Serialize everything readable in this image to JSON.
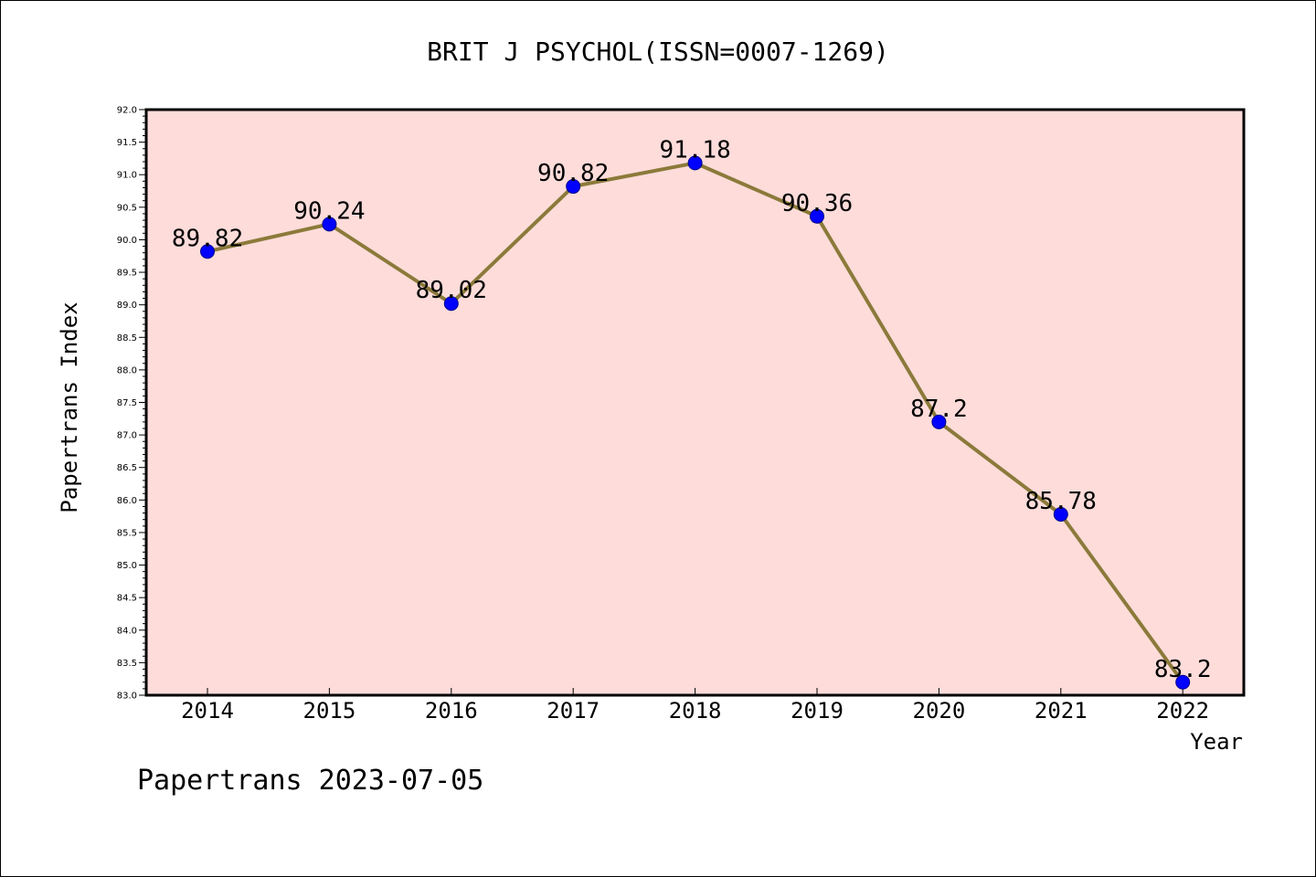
{
  "chart_data": {
    "type": "line",
    "title": "BRIT J PSYCHOL(ISSN=0007-1269)",
    "xlabel": "Year",
    "ylabel": "Papertrans Index",
    "categories": [
      "2014",
      "2015",
      "2016",
      "2017",
      "2018",
      "2019",
      "2020",
      "2021",
      "2022"
    ],
    "series": [
      {
        "values": [
          89.82,
          90.24,
          89.02,
          90.82,
          91.18,
          90.36,
          87.2,
          85.78,
          83.2
        ],
        "data_labels": [
          "89.82",
          "90.24",
          "89.02",
          "90.82",
          "91.18",
          "90.36",
          "87.2",
          "85.78",
          "83.2"
        ]
      }
    ],
    "ylim": [
      83.0,
      92.0
    ],
    "yticks": [
      "83.0",
      "83.5",
      "84.0",
      "84.5",
      "85.0",
      "85.5",
      "86.0",
      "86.5",
      "87.0",
      "87.5",
      "88.0",
      "88.5",
      "89.0",
      "89.5",
      "90.0",
      "90.5",
      "91.0",
      "91.5",
      "92.0"
    ],
    "grid": false,
    "legend": "none",
    "colors": {
      "plot_background": "#fddcda",
      "line": "#8b7a3a",
      "marker_fill": "#0000ff",
      "marker_stroke": "#00008b",
      "axis": "#000000"
    }
  },
  "footer": "Papertrans 2023-07-05"
}
